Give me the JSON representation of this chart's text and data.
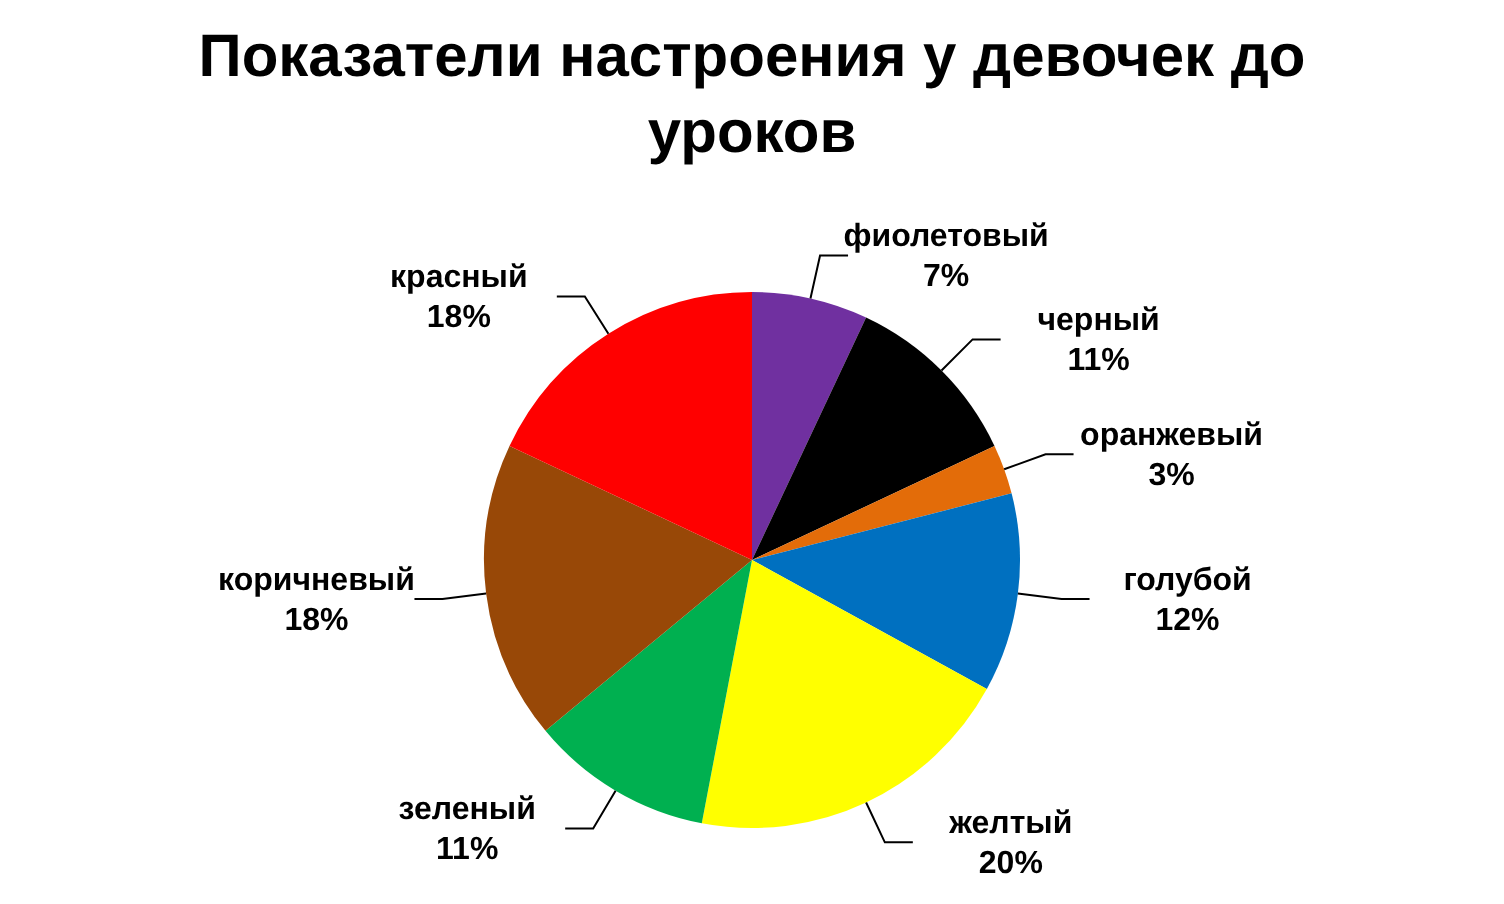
{
  "chart_data": {
    "type": "pie",
    "title": "Показатели настроения у девочек до уроков",
    "categories": [
      "фиолетовый",
      "черный",
      "оранжевый",
      "голубой",
      "желтый",
      "зеленый",
      "коричневый",
      "красный"
    ],
    "values": [
      7,
      11,
      3,
      12,
      20,
      11,
      18,
      18
    ],
    "colors": [
      "#7030a0",
      "#000000",
      "#e36c09",
      "#0070c0",
      "#ffff00",
      "#00b050",
      "#984807",
      "#ff0000"
    ],
    "value_labels": [
      "7%",
      "11%",
      "3%",
      "12%",
      "20%",
      "11%",
      "18%",
      "18%"
    ],
    "legend": false
  }
}
